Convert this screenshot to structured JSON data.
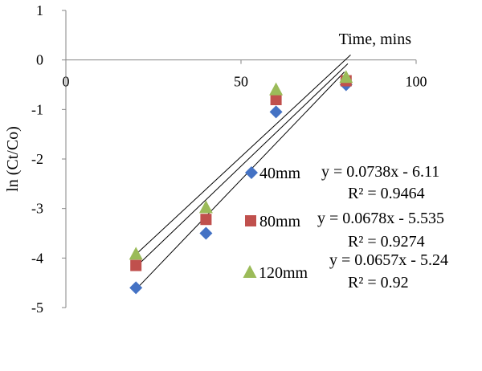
{
  "chart_data": {
    "type": "scatter",
    "xlabel": "Time, mins",
    "ylabel": "ln (Ct/Co)",
    "xlim": [
      0,
      100
    ],
    "ylim": [
      -5,
      1
    ],
    "x_ticks": [
      "0",
      "50",
      "100"
    ],
    "y_ticks": [
      "1",
      "0",
      "-1",
      "-2",
      "-3",
      "-4",
      "-5"
    ],
    "grid": false,
    "legend_placement": "right",
    "series": [
      {
        "name": "40mm",
        "marker": "diamond",
        "color": "#4472C4",
        "x": [
          20,
          40,
          60,
          80
        ],
        "y": [
          -4.6,
          -3.5,
          -1.05,
          -0.5
        ],
        "trendline": {
          "slope": 0.0738,
          "intercept": -6.11
        },
        "equation": "y = 0.0738x  - 6.11",
        "r2": "R² = 0.9464"
      },
      {
        "name": "80mm",
        "marker": "square",
        "color": "#C0504D",
        "x": [
          20,
          40,
          60,
          80
        ],
        "y": [
          -4.15,
          -3.22,
          -0.8,
          -0.42
        ],
        "trendline": {
          "slope": 0.0678,
          "intercept": -5.535
        },
        "equation": "y = 0.0678x  - 5.535",
        "r2": "R² = 0.9274"
      },
      {
        "name": "120mm",
        "marker": "triangle",
        "color": "#9BBB59",
        "x": [
          20,
          40,
          60,
          80
        ],
        "y": [
          -3.92,
          -2.98,
          -0.6,
          -0.35
        ],
        "trendline": {
          "slope": 0.0657,
          "intercept": -5.24
        },
        "equation": "y = 0.0657x  - 5.24",
        "r2": "R² = 0.92"
      }
    ]
  }
}
